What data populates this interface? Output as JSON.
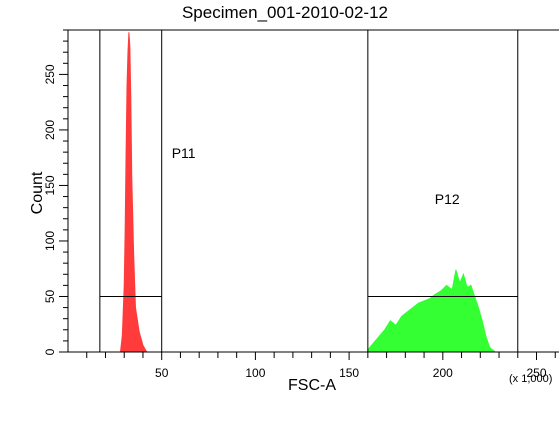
{
  "chart_data": {
    "type": "histogram",
    "title": "Specimen_001-2010-02-12",
    "xlabel": "FSC-A",
    "ylabel": "Count",
    "x_multiplier": "(x 1,000)",
    "xlim": [
      0,
      262
    ],
    "ylim": [
      0,
      290
    ],
    "x_ticks": [
      50,
      100,
      150,
      200,
      250
    ],
    "y_ticks": [
      0,
      50,
      100,
      150,
      200,
      250
    ],
    "grid": false,
    "series": [
      {
        "color": "#ff3b3b",
        "x": [
          28,
          29,
          30,
          30.5,
          31,
          31.5,
          32,
          32.5,
          33,
          33.5,
          34,
          35,
          36,
          38,
          40,
          42
        ],
        "y": [
          0,
          15,
          60,
          110,
          180,
          240,
          270,
          288,
          275,
          230,
          160,
          90,
          40,
          18,
          6,
          0
        ]
      },
      {
        "color": "#33ff33",
        "x": [
          160,
          163,
          166,
          169,
          172,
          175,
          178,
          181,
          184,
          187,
          190,
          193,
          196,
          199,
          202,
          205,
          207,
          209,
          211,
          213,
          215,
          217,
          219,
          221,
          223,
          225,
          228
        ],
        "y": [
          2,
          8,
          14,
          20,
          28,
          24,
          32,
          36,
          40,
          44,
          46,
          48,
          52,
          55,
          60,
          56,
          74,
          62,
          70,
          58,
          60,
          50,
          40,
          28,
          14,
          4,
          0
        ]
      }
    ],
    "gates": [
      {
        "label": "P11",
        "x_range": [
          17,
          50
        ],
        "y_level": 50
      },
      {
        "label": "P12",
        "x_range": [
          160,
          240
        ],
        "y_level": 50
      }
    ]
  }
}
